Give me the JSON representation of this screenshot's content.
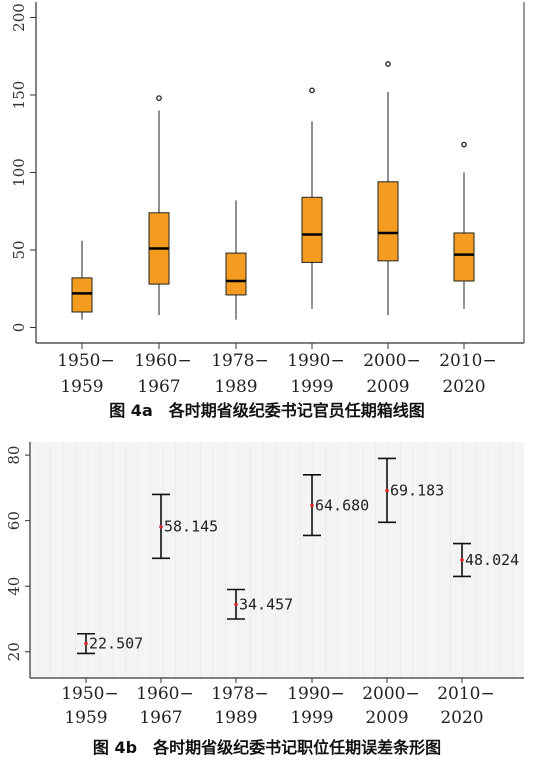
{
  "chart_data": [
    {
      "type": "box",
      "caption": "图 4a　各时期省级纪委书记官员任期箱线图",
      "categories": [
        "1950–1959",
        "1960–1967",
        "1978–1989",
        "1990–1999",
        "2000–2009",
        "2010–2020"
      ],
      "category_lines": [
        [
          "1950−",
          "1959"
        ],
        [
          "1960−",
          "1967"
        ],
        [
          "1978−",
          "1989"
        ],
        [
          "1990−",
          "1999"
        ],
        [
          "2000−",
          "2009"
        ],
        [
          "2010−",
          "2020"
        ]
      ],
      "ylim": [
        -10,
        210
      ],
      "yticks": [
        0,
        50,
        100,
        150,
        200
      ],
      "box_color": "#f39c1f",
      "boxes": [
        {
          "whisker_low": 5,
          "q1": 10,
          "median": 22,
          "q3": 32,
          "whisker_high": 56,
          "outliers": []
        },
        {
          "whisker_low": 8,
          "q1": 28,
          "median": 51,
          "q3": 74,
          "whisker_high": 140,
          "outliers": [
            148
          ]
        },
        {
          "whisker_low": 5,
          "q1": 21,
          "median": 30,
          "q3": 48,
          "whisker_high": 82,
          "outliers": []
        },
        {
          "whisker_low": 12,
          "q1": 42,
          "median": 60,
          "q3": 84,
          "whisker_high": 133,
          "outliers": [
            153
          ]
        },
        {
          "whisker_low": 8,
          "q1": 43,
          "median": 61,
          "q3": 94,
          "whisker_high": 152,
          "outliers": [
            170
          ]
        },
        {
          "whisker_low": 12,
          "q1": 30,
          "median": 47,
          "q3": 61,
          "whisker_high": 100,
          "outliers": [
            118
          ]
        }
      ]
    },
    {
      "type": "errorbar",
      "caption": "图 4b　各时期省级纪委书记职位任期误差条形图",
      "categories": [
        "1950–1959",
        "1960–1967",
        "1978–1989",
        "1990–1999",
        "2000–2009",
        "2010–2020"
      ],
      "category_lines": [
        [
          "1950−",
          "1959"
        ],
        [
          "1960−",
          "1967"
        ],
        [
          "1978−",
          "1989"
        ],
        [
          "1990−",
          "1999"
        ],
        [
          "2000−",
          "2009"
        ],
        [
          "2010−",
          "2020"
        ]
      ],
      "ylim": [
        12,
        84
      ],
      "yticks": [
        20,
        40,
        60,
        80
      ],
      "point_color": "#d62728",
      "points": [
        {
          "mean": 22.507,
          "label": "22.507",
          "low": 19.5,
          "high": 25.5
        },
        {
          "mean": 58.145,
          "label": "58.145",
          "low": 48.5,
          "high": 68
        },
        {
          "mean": 34.457,
          "label": "34.457",
          "low": 30,
          "high": 39
        },
        {
          "mean": 64.68,
          "label": "64.680",
          "low": 55.5,
          "high": 74
        },
        {
          "mean": 69.183,
          "label": "69.183",
          "low": 59.5,
          "high": 79
        },
        {
          "mean": 48.024,
          "label": "48.024",
          "low": 43,
          "high": 53
        }
      ]
    }
  ]
}
